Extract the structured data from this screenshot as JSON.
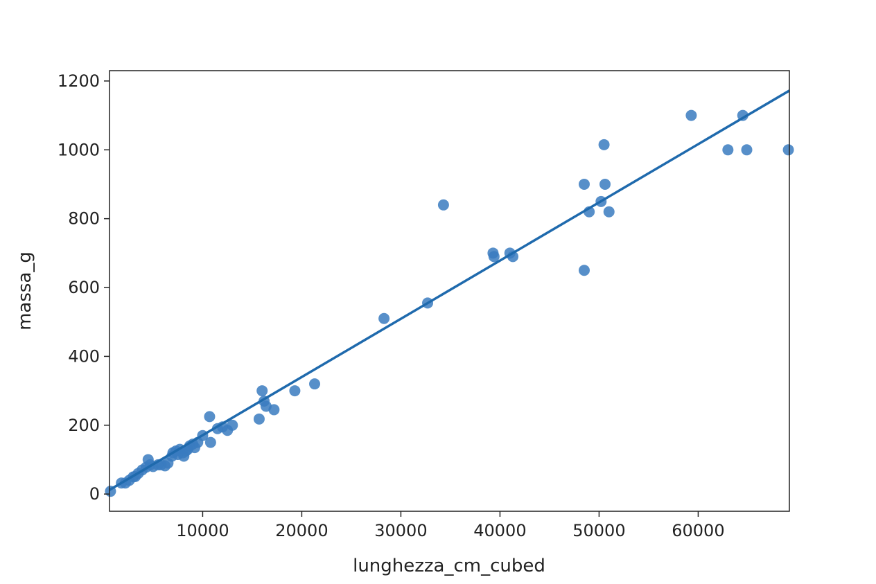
{
  "chart_data": {
    "type": "scatter",
    "title": "",
    "xlabel": "lunghezza_cm_cubed",
    "ylabel": "massa_g",
    "xlim": [
      600,
      69200
    ],
    "ylim": [
      -50,
      1230
    ],
    "xticks": [
      10000,
      20000,
      30000,
      40000,
      50000,
      60000
    ],
    "yticks": [
      0,
      200,
      400,
      600,
      800,
      1000,
      1200
    ],
    "xtick_labels": [
      "10000",
      "20000",
      "30000",
      "40000",
      "50000",
      "60000"
    ],
    "ytick_labels": [
      "0",
      "200",
      "400",
      "600",
      "800",
      "1000",
      "1200"
    ],
    "grid": false,
    "colors": {
      "points": "#3a7bbf",
      "line": "#1f6aad"
    },
    "series": [
      {
        "values": [
          [
            700,
            8
          ],
          [
            1800,
            32
          ],
          [
            2200,
            32
          ],
          [
            2600,
            40
          ],
          [
            3000,
            50
          ],
          [
            3200,
            51
          ],
          [
            3500,
            60
          ],
          [
            3900,
            70
          ],
          [
            4300,
            78
          ],
          [
            4500,
            100
          ],
          [
            4700,
            85
          ],
          [
            5000,
            80
          ],
          [
            5500,
            85
          ],
          [
            5800,
            85
          ],
          [
            6200,
            82
          ],
          [
            6500,
            90
          ],
          [
            6900,
            110
          ],
          [
            7000,
            120
          ],
          [
            7300,
            125
          ],
          [
            7500,
            115
          ],
          [
            7700,
            130
          ],
          [
            8000,
            120
          ],
          [
            8100,
            110
          ],
          [
            8300,
            125
          ],
          [
            8500,
            130
          ],
          [
            8700,
            140
          ],
          [
            9000,
            145
          ],
          [
            9200,
            135
          ],
          [
            9500,
            150
          ],
          [
            10000,
            170
          ],
          [
            10700,
            225
          ],
          [
            10800,
            150
          ],
          [
            11500,
            190
          ],
          [
            12000,
            195
          ],
          [
            12500,
            185
          ],
          [
            13000,
            200
          ],
          [
            15700,
            218
          ],
          [
            16000,
            300
          ],
          [
            16200,
            270
          ],
          [
            16400,
            255
          ],
          [
            17200,
            245
          ],
          [
            19300,
            300
          ],
          [
            21300,
            320
          ],
          [
            28300,
            510
          ],
          [
            32700,
            555
          ],
          [
            34300,
            840
          ],
          [
            39300,
            700
          ],
          [
            39400,
            690
          ],
          [
            41000,
            700
          ],
          [
            41300,
            690
          ],
          [
            48500,
            900
          ],
          [
            48500,
            650
          ],
          [
            49000,
            820
          ],
          [
            50200,
            850
          ],
          [
            50500,
            1015
          ],
          [
            50600,
            900
          ],
          [
            51000,
            820
          ],
          [
            59300,
            1100
          ],
          [
            63000,
            1000
          ],
          [
            64500,
            1100
          ],
          [
            64900,
            1000
          ],
          [
            69100,
            1000
          ]
        ]
      }
    ],
    "regression_line": {
      "x": [
        600,
        69200
      ],
      "y": [
        12,
        1172
      ]
    }
  }
}
